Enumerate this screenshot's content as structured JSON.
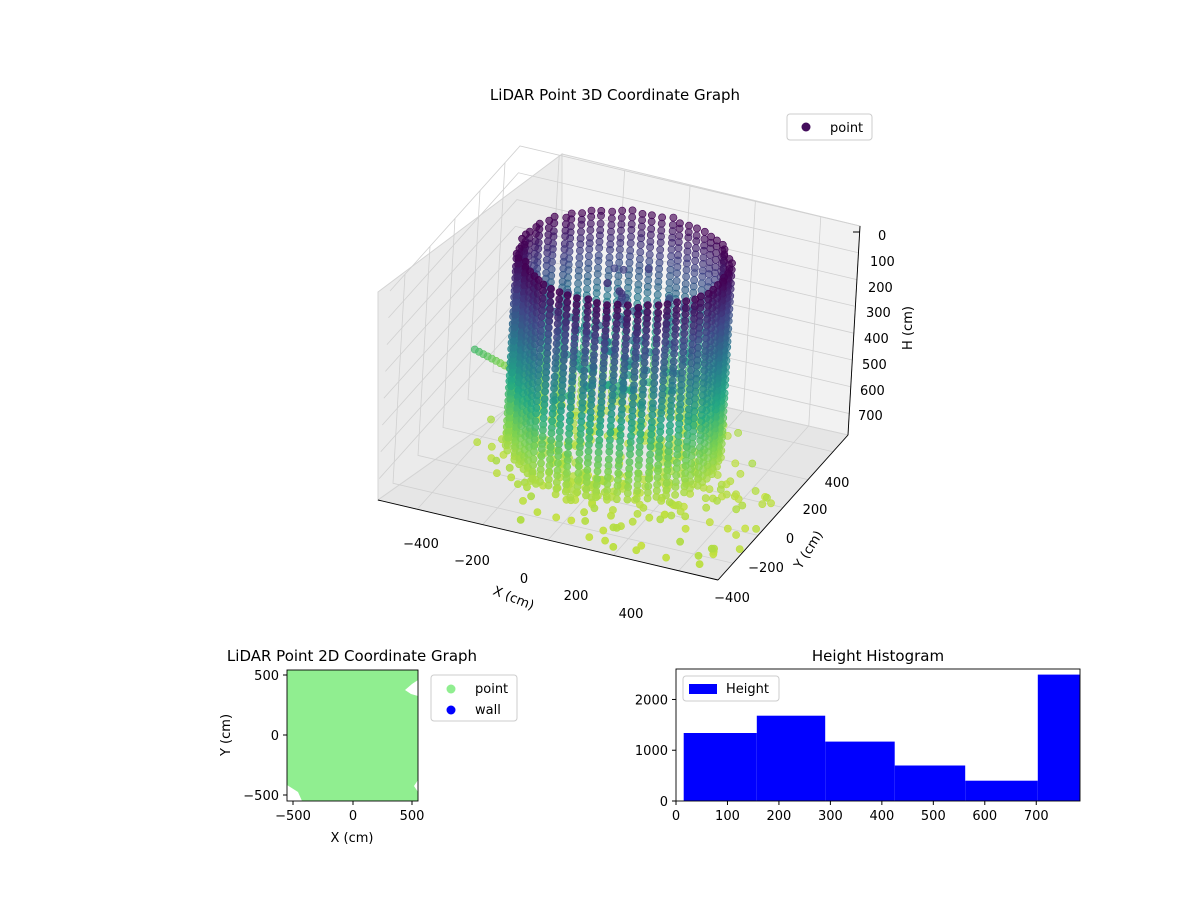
{
  "chart_data": [
    {
      "type": "scatter",
      "title": "LiDAR Point 3D Coordinate Graph",
      "xlabel": "X (cm)",
      "ylabel": "Y (cm)",
      "zlabel": "H (cm)",
      "x_ticks": [
        "−400",
        "−200",
        "0",
        "200",
        "400"
      ],
      "y_ticks": [
        "−400",
        "−200",
        "0",
        "200",
        "400"
      ],
      "z_ticks": [
        "0",
        "100",
        "200",
        "300",
        "400",
        "500",
        "600",
        "700"
      ],
      "xlim": [
        -520,
        520
      ],
      "ylim": [
        -520,
        520
      ],
      "zlim": [
        0,
        780
      ],
      "z_inverted": true,
      "legend": {
        "placement": "top-right",
        "entries": [
          {
            "label": "point",
            "color": "#440e5c"
          }
        ]
      },
      "colormap": "viridis",
      "description": "Dense cylindrical ring of LiDAR points, radius about 300 cm, plus scattered ground points; colored by height."
    },
    {
      "type": "scatter",
      "title": "LiDAR Point 2D Coordinate Graph",
      "xlabel": "X (cm)",
      "ylabel": "Y (cm)",
      "x_ticks": [
        "−500",
        "0",
        "500"
      ],
      "y_ticks": [
        "500",
        "0",
        "−500"
      ],
      "xlim": [
        -550,
        550
      ],
      "ylim": [
        -550,
        550
      ],
      "legend": {
        "placement": "right-outside",
        "entries": [
          {
            "label": "point",
            "color": "#90ee90"
          },
          {
            "label": "wall",
            "color": "#0000ff"
          }
        ]
      }
    },
    {
      "type": "bar",
      "title": "Height Histogram",
      "legend": {
        "placement": "top-left",
        "entries": [
          {
            "label": "Height",
            "color": "#0000ff"
          }
        ]
      },
      "x_ticks": [
        "0",
        "100",
        "200",
        "300",
        "400",
        "500",
        "600",
        "700"
      ],
      "y_ticks": [
        "0",
        "1000",
        "2000"
      ],
      "xlim": [
        0,
        785
      ],
      "ylim": [
        0,
        2600
      ],
      "bins": [
        {
          "start": 15,
          "end": 157,
          "count": 1340
        },
        {
          "start": 157,
          "end": 290,
          "count": 1680
        },
        {
          "start": 290,
          "end": 425,
          "count": 1170
        },
        {
          "start": 425,
          "end": 562,
          "count": 700
        },
        {
          "start": 562,
          "end": 703,
          "count": 400
        },
        {
          "start": 703,
          "end": 785,
          "count": 2490
        }
      ],
      "color": "#0000ff"
    }
  ]
}
